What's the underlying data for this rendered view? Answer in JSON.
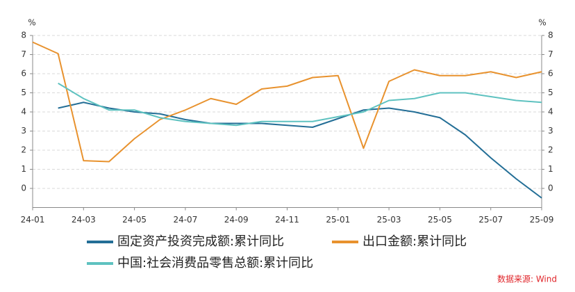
{
  "chart_data": {
    "type": "line",
    "y_unit": "%",
    "y2_unit": "%",
    "categories": [
      "24-01",
      null,
      "24-03",
      null,
      "24-05",
      null,
      "24-07",
      null,
      "24-09",
      null,
      "24-11",
      null,
      "25-01",
      null,
      "25-03",
      null,
      "25-05",
      null,
      "25-07",
      null,
      "25-09"
    ],
    "series": [
      {
        "name": "固定资产投资完成额:累计同比",
        "color": "#236e96",
        "values": [
          null,
          4.2,
          4.5,
          4.2,
          4.0,
          3.9,
          3.6,
          3.4,
          3.4,
          3.4,
          3.3,
          3.2,
          3.65,
          4.1,
          4.2,
          4.0,
          3.7,
          2.8,
          1.6,
          0.5,
          -0.5
        ]
      },
      {
        "name": "出口金额:累计同比",
        "color": "#e8922e",
        "values": [
          7.65,
          7.05,
          1.45,
          1.4,
          2.6,
          3.6,
          4.1,
          4.7,
          4.4,
          5.2,
          5.35,
          5.8,
          5.9,
          2.1,
          5.6,
          6.2,
          5.9,
          5.9,
          6.1,
          5.8,
          6.1
        ]
      },
      {
        "name": "中国:社会消费品零售总额:累计同比",
        "color": "#5ec2c0",
        "values": [
          null,
          5.5,
          4.7,
          4.1,
          4.1,
          3.7,
          3.5,
          3.4,
          3.3,
          3.5,
          3.5,
          3.5,
          3.75,
          4.0,
          4.6,
          4.7,
          5.0,
          5.0,
          4.8,
          4.6,
          4.5
        ]
      }
    ],
    "ylim": [
      -1,
      8
    ],
    "yticks": [
      0,
      1,
      2,
      3,
      4,
      5,
      6,
      7,
      8
    ],
    "y2lim": [
      -1,
      8
    ],
    "y2ticks": [
      0,
      1,
      2,
      3,
      4,
      5,
      6,
      7,
      8
    ],
    "grid": true,
    "source": "数据来源: Wind"
  }
}
